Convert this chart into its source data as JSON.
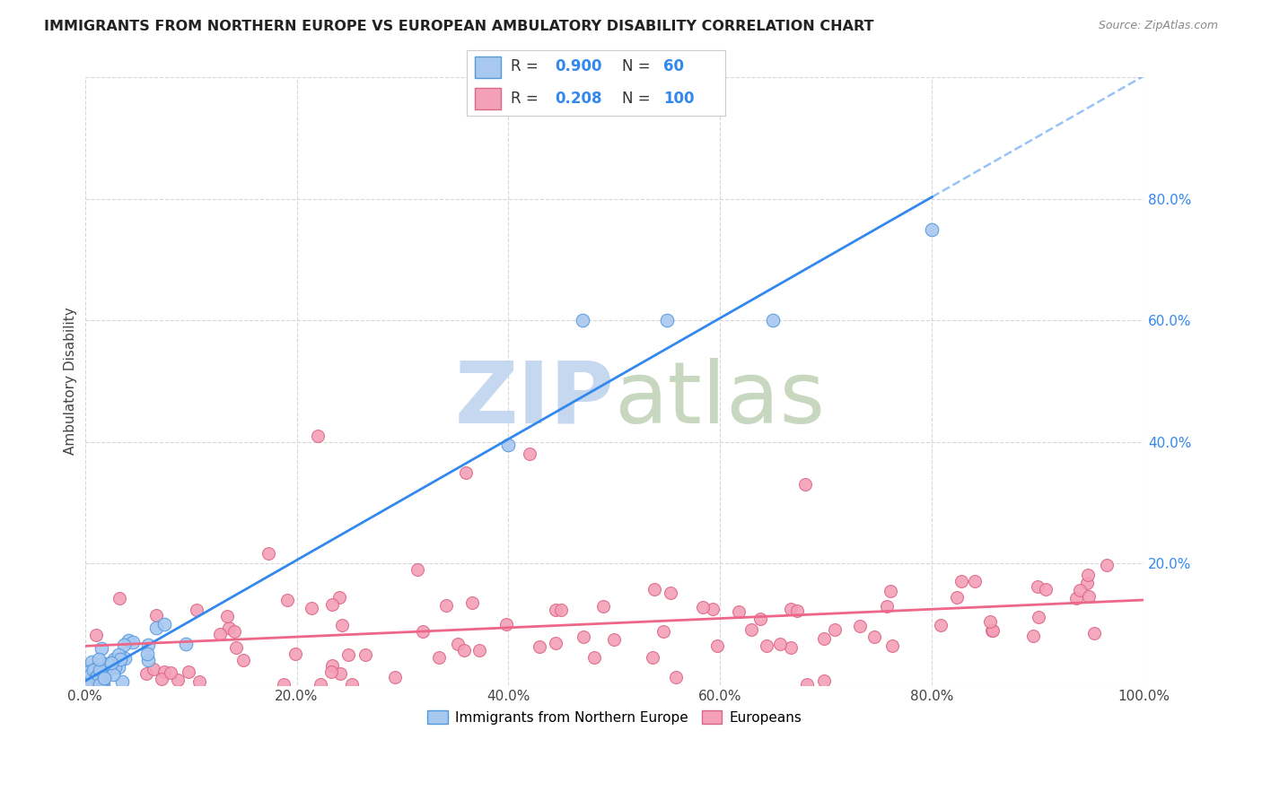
{
  "title": "IMMIGRANTS FROM NORTHERN EUROPE VS EUROPEAN AMBULATORY DISABILITY CORRELATION CHART",
  "source": "Source: ZipAtlas.com",
  "ylabel": "Ambulatory Disability",
  "xlim": [
    0,
    1.0
  ],
  "ylim": [
    0,
    1.0
  ],
  "xticks": [
    0.0,
    0.2,
    0.4,
    0.6,
    0.8,
    1.0
  ],
  "xticklabels": [
    "0.0%",
    "20.0%",
    "40.0%",
    "60.0%",
    "80.0%",
    "100.0%"
  ],
  "yticks_right": [
    0.2,
    0.4,
    0.6,
    0.8
  ],
  "yticklabels_right": [
    "20.0%",
    "40.0%",
    "60.0%",
    "80.0%"
  ],
  "blue_color": "#A8C8F0",
  "pink_color": "#F4A0B8",
  "blue_edge_color": "#5599DD",
  "pink_edge_color": "#DD6688",
  "blue_line_color": "#3388EE",
  "pink_line_color": "#EE6688",
  "background_color": "#FFFFFF",
  "grid_color": "#CCCCCC",
  "legend_label_blue": "Immigrants from Northern Europe",
  "legend_label_pink": "Europeans",
  "blue_R": "0.900",
  "blue_N": "60",
  "pink_R": "0.208",
  "pink_N": "100"
}
